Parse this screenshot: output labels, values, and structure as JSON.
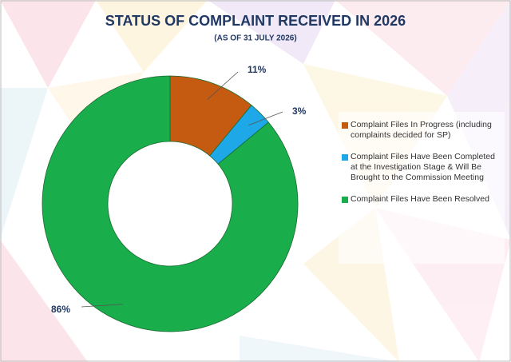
{
  "chart_data": {
    "type": "donut",
    "title": "STATUS OF COMPLAINT RECEIVED IN 2026",
    "subtitle": "(AS OF 31 JULY 2026)",
    "categories": [
      "Complaint Files In Progress (including complaints decided for SP)",
      "Complaint Files Have Been Completed at the Investigation Stage & Will Be Brought to the Commission Meeting",
      "Complaint Files Have Been Resolved"
    ],
    "values": [
      11,
      3,
      86
    ],
    "value_labels": [
      "11%",
      "3%",
      "86%"
    ],
    "colors": [
      "#c55a11",
      "#1fa8e8",
      "#19ad4b"
    ]
  }
}
